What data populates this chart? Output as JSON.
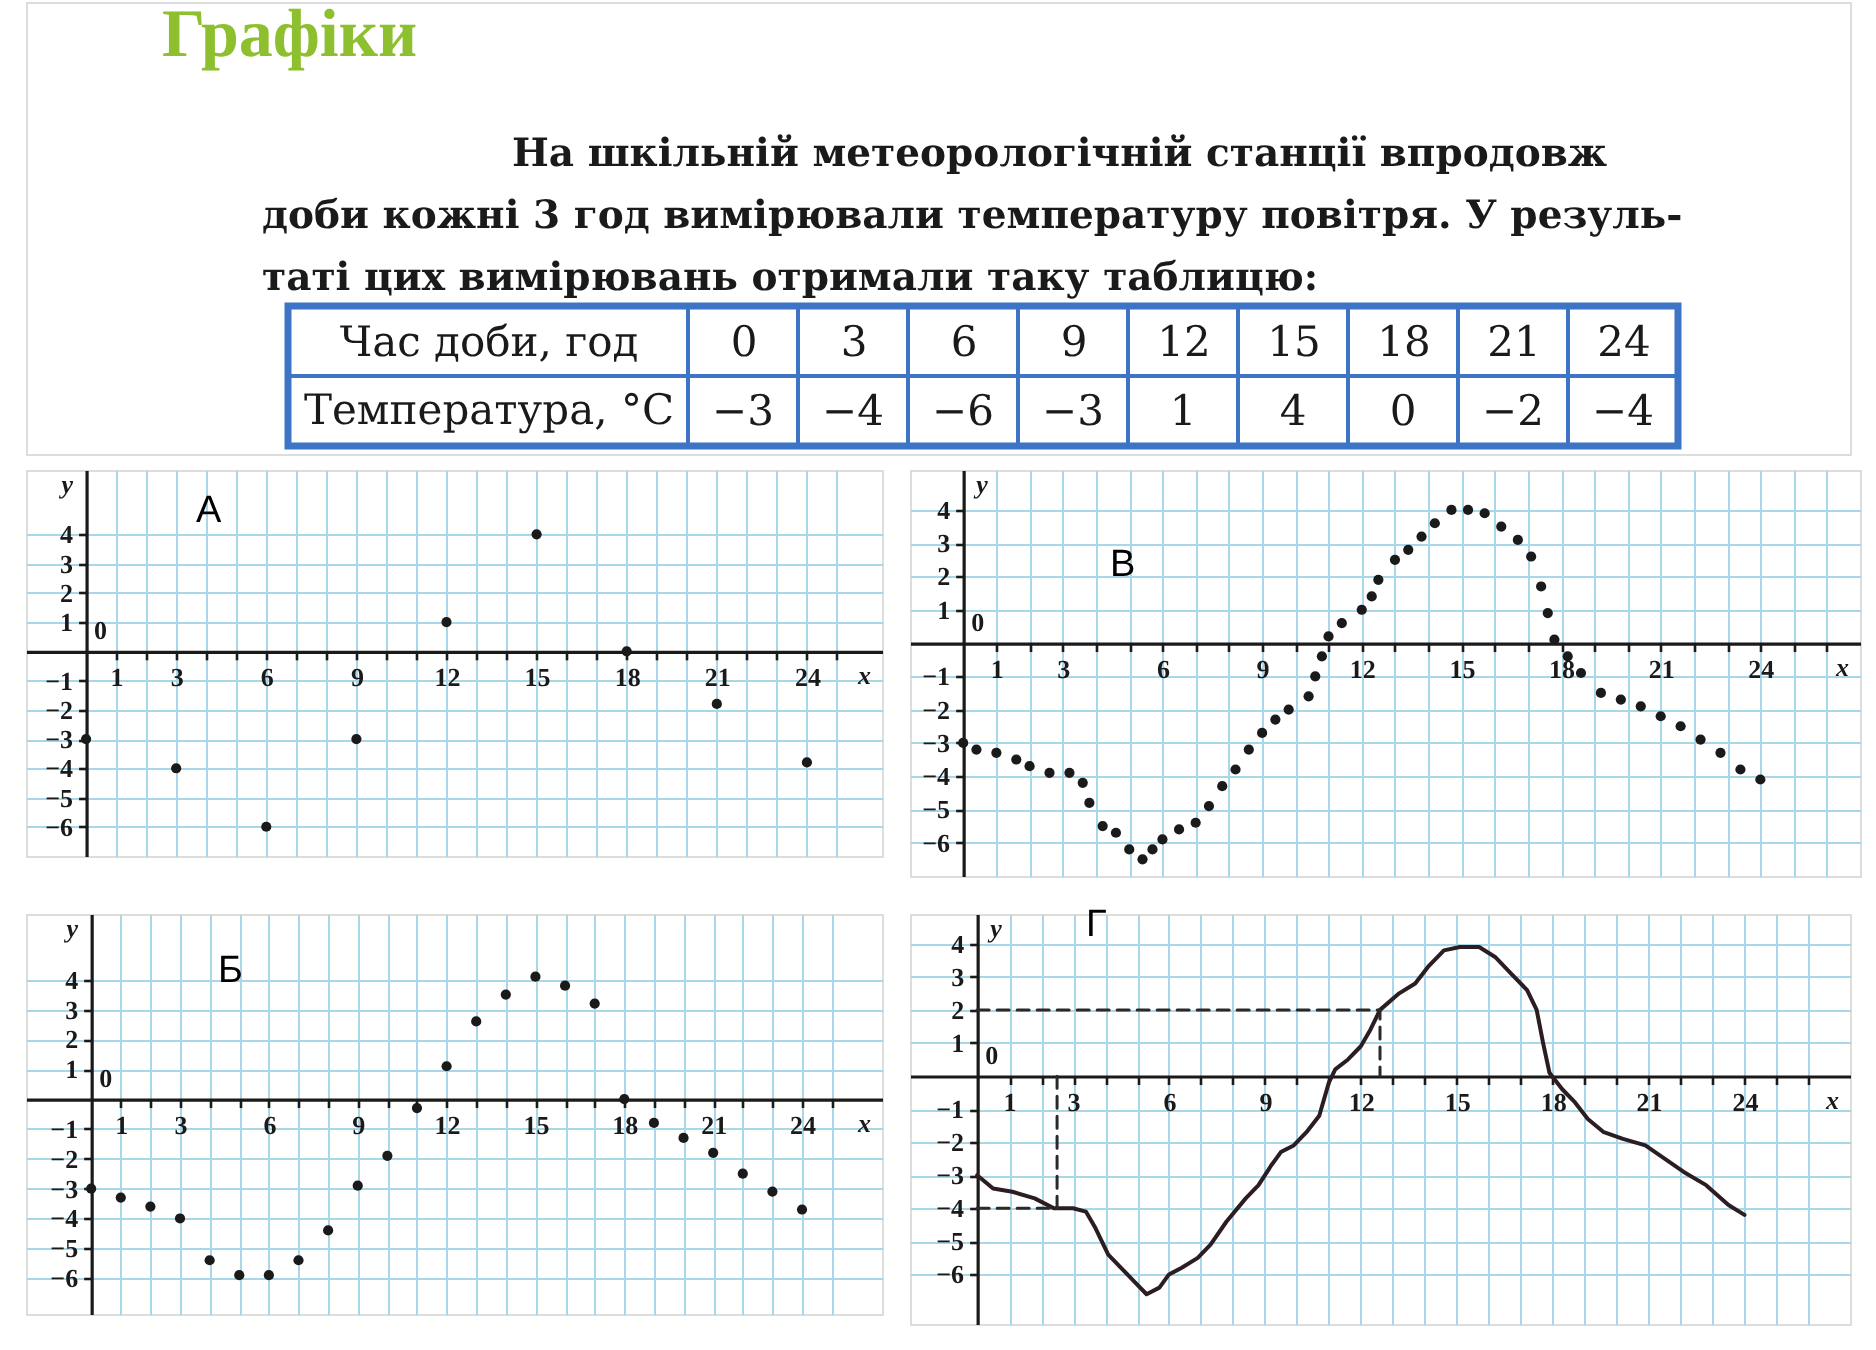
{
  "chart_data": [
    {
      "type": "heatmap",
      "title": "Графіки",
      "subtitle": "На шкільній метеорологічній станції впродовж\nдоби кожні 3 год вимірювали температуру повітря. У резуль-\nтаті цих вимірювань отримали таку таблицю:",
      "xlabel": "Час доби, год",
      "categories": [
        "0",
        "3",
        "6",
        "9",
        "12",
        "15",
        "18",
        "21",
        "24"
      ],
      "y_categories": [
        "Температура, °C"
      ],
      "cells": [
        [
          -3,
          -4,
          -6,
          -3,
          1,
          4,
          0,
          -2,
          -4
        ]
      ],
      "color": "#ffffff",
      "data_labels": true
    },
    {
      "type": "scatter",
      "title": "А",
      "xlabel": "x",
      "ylabel": "y",
      "x": [
        0,
        3,
        6,
        9,
        12,
        15,
        18,
        21,
        24
      ],
      "values": [
        -3,
        -4,
        -6,
        -3,
        1,
        4,
        0,
        -1.8,
        -3.8
      ],
      "color": "#1a1a1a",
      "marker": "circle",
      "grid": true,
      "xlim": [
        -2,
        26.5
      ],
      "ylim": [
        -7,
        6.2
      ],
      "xticks": [
        1,
        {
          "value": 2,
          "label": null
        },
        3,
        {
          "value": 4,
          "label": null
        },
        {
          "value": 5,
          "label": null
        },
        6,
        {
          "value": 7,
          "label": null
        },
        {
          "value": 8,
          "label": null
        },
        9,
        {
          "value": 10,
          "label": null
        },
        {
          "value": 11,
          "label": null
        },
        12,
        {
          "value": 13,
          "label": null
        },
        {
          "value": 14,
          "label": null
        },
        15,
        {
          "value": 16,
          "label": null
        },
        {
          "value": 17,
          "label": null
        },
        18,
        {
          "value": 19,
          "label": null
        },
        {
          "value": 20,
          "label": null
        },
        21,
        {
          "value": 22,
          "label": null
        },
        {
          "value": 23,
          "label": null
        },
        24,
        {
          "value": 25,
          "label": null
        }
      ],
      "yticks": [
        -6,
        -5,
        -4,
        -3,
        -2,
        -1,
        1,
        2,
        3,
        4
      ],
      "annotations": [
        "0"
      ]
    },
    {
      "type": "scatter",
      "title": "В",
      "xlabel": "x",
      "ylabel": "y",
      "x": [
        0,
        0.4,
        1,
        1.6,
        2,
        2.6,
        3.2,
        3.6,
        3.8,
        4.2,
        4.6,
        5,
        5.4,
        5.7,
        6,
        6.5,
        7,
        7.4,
        7.8,
        8.2,
        8.6,
        9,
        9.4,
        9.8,
        10.4,
        10.6,
        10.8,
        11,
        11.4,
        12,
        12.3,
        12.5,
        13,
        13.4,
        13.8,
        14.2,
        14.7,
        15.2,
        15.7,
        16.2,
        16.7,
        17.1,
        17.4,
        17.6,
        17.8,
        18.2,
        18.6,
        19.2,
        19.8,
        20.4,
        21,
        21.6,
        22.2,
        22.8,
        23.4,
        24
      ],
      "values": [
        -3,
        -3.2,
        -3.3,
        -3.5,
        -3.7,
        -3.9,
        -3.9,
        -4.2,
        -4.8,
        -5.5,
        -5.7,
        -6.2,
        -6.5,
        -6.2,
        -5.9,
        -5.6,
        -5.4,
        -4.9,
        -4.3,
        -3.8,
        -3.2,
        -2.7,
        -2.3,
        -2,
        -1.6,
        -1,
        -0.4,
        0.2,
        0.6,
        1,
        1.4,
        1.9,
        2.5,
        2.8,
        3.2,
        3.6,
        4,
        4,
        3.9,
        3.5,
        3.1,
        2.6,
        1.7,
        0.9,
        0.1,
        -0.4,
        -0.9,
        -1.5,
        -1.7,
        -1.9,
        -2.2,
        -2.5,
        -2.9,
        -3.3,
        -3.8,
        -4.1
      ],
      "color": "#1a1a1a",
      "marker": "circle",
      "grid": true,
      "xlim": [
        -1.6,
        27
      ],
      "ylim": [
        -7,
        5.2
      ],
      "xticks": [
        1,
        {
          "value": 2,
          "label": null
        },
        3,
        {
          "value": 4,
          "label": null
        },
        {
          "value": 5,
          "label": null
        },
        6,
        {
          "value": 7,
          "label": null
        },
        {
          "value": 8,
          "label": null
        },
        9,
        {
          "value": 10,
          "label": null
        },
        {
          "value": 11,
          "label": null
        },
        12,
        {
          "value": 13,
          "label": null
        },
        {
          "value": 14,
          "label": null
        },
        15,
        {
          "value": 16,
          "label": null
        },
        {
          "value": 17,
          "label": null
        },
        18,
        {
          "value": 19,
          "label": null
        },
        {
          "value": 20,
          "label": null
        },
        21,
        {
          "value": 22,
          "label": null
        },
        {
          "value": 23,
          "label": null
        },
        24,
        {
          "value": 25,
          "label": null
        },
        {
          "value": 26,
          "label": null
        }
      ],
      "yticks": [
        -6,
        -5,
        -4,
        -3,
        -2,
        -1,
        1,
        2,
        3,
        4
      ],
      "annotations": [
        "0"
      ]
    },
    {
      "type": "scatter",
      "title": "Б",
      "xlabel": "x",
      "ylabel": "y",
      "x": [
        0,
        1,
        2,
        3,
        4,
        5,
        6,
        7,
        8,
        9,
        10,
        11,
        12,
        13,
        14,
        15,
        16,
        17,
        18,
        19,
        20,
        21,
        22,
        23,
        24
      ],
      "values": [
        -3,
        -3.3,
        -3.6,
        -4,
        -5.4,
        -5.9,
        -5.9,
        -5.4,
        -4.4,
        -2.9,
        -1.9,
        -0.3,
        1.1,
        2.6,
        3.5,
        4.1,
        3.8,
        3.2,
        0,
        -0.8,
        -1.3,
        -1.8,
        -2.5,
        -3.1,
        -3.7
      ],
      "color": "#1a1a1a",
      "marker": "circle",
      "grid": true,
      "xlim": [
        -2.2,
        26.7
      ],
      "ylim": [
        -7.2,
        6.2
      ],
      "xticks": [
        1,
        {
          "value": 2,
          "label": null
        },
        3,
        {
          "value": 4,
          "label": null
        },
        {
          "value": 5,
          "label": null
        },
        6,
        {
          "value": 7,
          "label": null
        },
        {
          "value": 8,
          "label": null
        },
        9,
        {
          "value": 10,
          "label": null
        },
        {
          "value": 11,
          "label": null
        },
        12,
        {
          "value": 13,
          "label": null
        },
        {
          "value": 14,
          "label": null
        },
        15,
        {
          "value": 16,
          "label": null
        },
        {
          "value": 17,
          "label": null
        },
        18,
        {
          "value": 19,
          "label": null
        },
        {
          "value": 20,
          "label": null
        },
        21,
        {
          "value": 22,
          "label": null
        },
        {
          "value": 23,
          "label": null
        },
        24,
        {
          "value": 25,
          "label": null
        }
      ],
      "yticks": [
        -6,
        -5,
        -4,
        -3,
        -2,
        -1,
        1,
        2,
        3,
        4
      ],
      "annotations": [
        "0"
      ]
    },
    {
      "type": "line",
      "title": "Г",
      "xlabel": "x",
      "ylabel": "y",
      "series": [
        {
          "color": "#2b1d21",
          "x": [
            0,
            0.5,
            1.1,
            1.8,
            2.4,
            3,
            3.4,
            3.7,
            4.1,
            4.5,
            4.9,
            5.3,
            5.7,
            6,
            6.4,
            6.9,
            7.3,
            7.8,
            8.4,
            8.8,
            9.2,
            9.5,
            9.9,
            10.3,
            10.7,
            11,
            11.2,
            11.6,
            12,
            12.3,
            12.6,
            13.2,
            13.7,
            14.1,
            14.6,
            15.1,
            15.7,
            16.2,
            16.7,
            17.2,
            17.5,
            17.7,
            17.9,
            18.3,
            18.7,
            19.1,
            19.6,
            20.2,
            20.9,
            21.5,
            22.1,
            22.8,
            23.5,
            24
          ],
          "values": [
            -3,
            -3.4,
            -3.5,
            -3.7,
            -4,
            -4,
            -4.1,
            -4.6,
            -5.4,
            -5.8,
            -6.2,
            -6.6,
            -6.4,
            -6,
            -5.8,
            -5.5,
            -5.1,
            -4.4,
            -3.7,
            -3.3,
            -2.7,
            -2.3,
            -2.1,
            -1.7,
            -1.2,
            -0.2,
            0.2,
            0.5,
            0.9,
            1.4,
            2,
            2.5,
            2.8,
            3.3,
            3.8,
            3.9,
            3.9,
            3.6,
            3.1,
            2.6,
            2,
            1,
            0.1,
            -0.4,
            -0.8,
            -1.3,
            -1.7,
            -1.9,
            -2.1,
            -2.5,
            -2.9,
            -3.3,
            -3.9,
            -4.2
          ]
        },
        {
          "color": "#2a2a2a",
          "line_style": "dashed",
          "x": [
            0,
            12.6,
            12.6
          ],
          "values": [
            2,
            2,
            0
          ]
        },
        {
          "color": "#2a2a2a",
          "line_style": "dashed",
          "x": [
            0,
            2.5,
            2.5
          ],
          "values": [
            -4,
            -4,
            0
          ]
        }
      ],
      "grid": true,
      "xlim": [
        -2.1,
        27.3
      ],
      "ylim": [
        -7.5,
        4.9
      ],
      "xticks": [
        1,
        {
          "value": 2,
          "label": null
        },
        3,
        {
          "value": 4,
          "label": null
        },
        {
          "value": 5,
          "label": null
        },
        6,
        {
          "value": 7,
          "label": null
        },
        {
          "value": 8,
          "label": null
        },
        9,
        {
          "value": 10,
          "label": null
        },
        {
          "value": 11,
          "label": null
        },
        12,
        {
          "value": 13,
          "label": null
        },
        {
          "value": 14,
          "label": null
        },
        15,
        {
          "value": 16,
          "label": null
        },
        {
          "value": 17,
          "label": null
        },
        18,
        {
          "value": 19,
          "label": null
        },
        {
          "value": 20,
          "label": null
        },
        21,
        {
          "value": 22,
          "label": null
        },
        {
          "value": 23,
          "label": null
        },
        24,
        {
          "value": 25,
          "label": null
        },
        {
          "value": 26,
          "label": null
        }
      ],
      "yticks": [
        -6,
        -5,
        -4,
        -3,
        -2,
        -1,
        1,
        2,
        3,
        4
      ],
      "annotations": [
        "0"
      ]
    }
  ]
}
